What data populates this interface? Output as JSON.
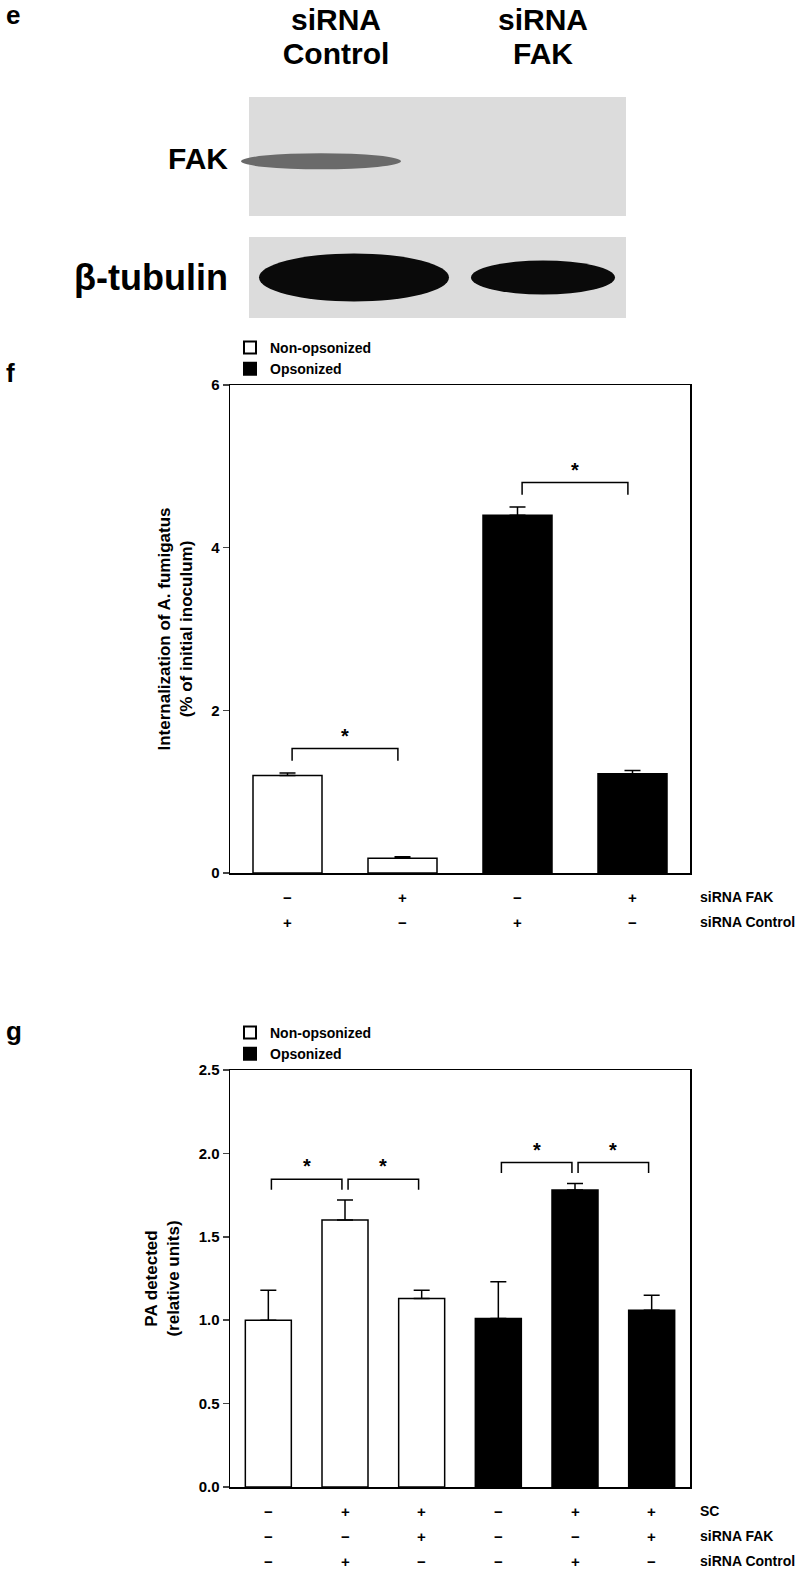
{
  "blot": {
    "panel": "e",
    "lanes": [
      [
        "siRNA",
        "Control"
      ],
      [
        "siRNA",
        "FAK"
      ]
    ],
    "rows": [
      {
        "label": "FAK",
        "bands": [
          true,
          false
        ]
      },
      {
        "label": "β-tubulin",
        "bands": [
          true,
          true
        ]
      }
    ]
  },
  "chart_data": [
    {
      "panel": "f",
      "type": "bar",
      "categories": [
        null,
        null,
        null,
        null
      ],
      "ylabel": [
        "Internalization of A. fumigatus",
        "(% of initial inoculum)"
      ],
      "ylim": [
        0,
        6
      ],
      "yticks": [
        0,
        2,
        4,
        6
      ],
      "legend": "upper left",
      "tick_labels": "y",
      "series": [
        {
          "name": "Non-opsonized",
          "color": "#ffffff",
          "values": [
            1.2,
            0.18,
            null,
            null
          ],
          "errors": [
            0.03,
            0.02,
            null,
            null
          ]
        },
        {
          "name": "Opsonized",
          "color": "#000000",
          "values": [
            null,
            null,
            4.4,
            1.22
          ],
          "errors": [
            null,
            null,
            0.1,
            0.04
          ]
        }
      ],
      "significance": [
        {
          "pair": [
            0,
            1
          ],
          "label": "*"
        },
        {
          "pair": [
            2,
            3
          ],
          "label": "*"
        }
      ],
      "conditions": [
        {
          "label": "siRNA FAK",
          "marks": [
            "−",
            "+",
            "−",
            "+"
          ]
        },
        {
          "label": "siRNA Control",
          "marks": [
            "+",
            "−",
            "+",
            "−"
          ]
        }
      ]
    },
    {
      "panel": "g",
      "type": "bar",
      "categories": [
        null,
        null,
        null,
        null,
        null,
        null
      ],
      "ylabel": [
        "PA detected",
        "(relative units)"
      ],
      "ylim": [
        0,
        2.5
      ],
      "yticks": [
        {
          "value": 0,
          "label": "0.0"
        },
        {
          "value": 0.5,
          "label": "0.5"
        },
        {
          "value": 1,
          "label": "1.0"
        },
        {
          "value": 1.5,
          "label": "1.5"
        },
        {
          "value": 2,
          "label": "2.0"
        },
        {
          "value": 2.5,
          "label": "2.5"
        }
      ],
      "legend": "upper left",
      "tick_labels": "y",
      "series": [
        {
          "name": "Non-opsonized",
          "color": "#ffffff",
          "values": [
            1.0,
            1.6,
            1.13,
            null,
            null,
            null
          ],
          "errors": [
            0.18,
            0.12,
            0.05,
            null,
            null,
            null
          ]
        },
        {
          "name": "Opsonized",
          "color": "#000000",
          "values": [
            null,
            null,
            null,
            1.01,
            1.78,
            1.06
          ],
          "errors": [
            null,
            null,
            null,
            0.22,
            0.04,
            0.09
          ]
        }
      ],
      "significance": [
        {
          "pair": [
            0,
            1
          ],
          "label": "*"
        },
        {
          "pair": [
            1,
            2
          ],
          "label": "*"
        },
        {
          "pair": [
            3,
            4
          ],
          "label": "*"
        },
        {
          "pair": [
            4,
            5
          ],
          "label": "*"
        }
      ],
      "conditions": [
        {
          "label": "SC",
          "marks": [
            "−",
            "+",
            "+",
            "−",
            "+",
            "+"
          ]
        },
        {
          "label": "siRNA FAK",
          "marks": [
            "−",
            "−",
            "+",
            "−",
            "−",
            "+"
          ]
        },
        {
          "label": "siRNA Control",
          "marks": [
            "−",
            "+",
            "−",
            "−",
            "+",
            "−"
          ]
        }
      ]
    }
  ]
}
